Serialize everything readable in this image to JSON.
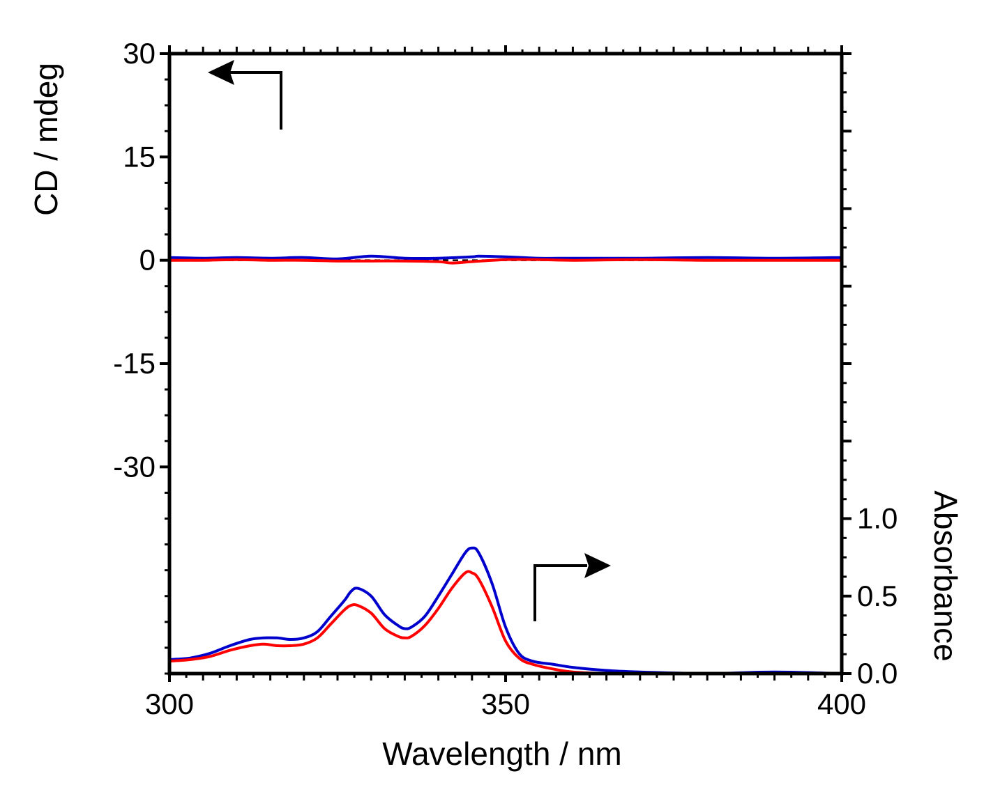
{
  "chart_data": {
    "type": "line",
    "xlabel": "Wavelength / nm",
    "ylabel_left": "CD / mdeg",
    "ylabel_right": "Absorbance",
    "xlim": [
      300,
      400
    ],
    "ylim_left": [
      -60,
      30
    ],
    "ylim_right": [
      0.0,
      4.0
    ],
    "x_ticks": [
      "300",
      "350",
      "400"
    ],
    "y_left_ticks": [
      "30",
      "15",
      "0",
      "-15",
      "-30"
    ],
    "y_right_ticks": [
      "1.0",
      "0.5",
      "0.0"
    ],
    "grid": false,
    "cd_series": [
      {
        "color": "#0000cc",
        "x": [
          300,
          305,
          310,
          315,
          320,
          325,
          330,
          335,
          340,
          345,
          346,
          350,
          355,
          360,
          370,
          380,
          390,
          400
        ],
        "y": [
          0.4,
          0.3,
          0.4,
          0.3,
          0.4,
          0.2,
          0.6,
          0.3,
          0.3,
          0.5,
          0.6,
          0.5,
          0.3,
          0.3,
          0.3,
          0.4,
          0.3,
          0.4
        ]
      },
      {
        "color": "#ff0000",
        "x": [
          300,
          305,
          310,
          315,
          320,
          325,
          330,
          335,
          340,
          342,
          345,
          350,
          355,
          360,
          370,
          380,
          390,
          400
        ],
        "y": [
          0.0,
          0.0,
          0.1,
          0.0,
          0.0,
          -0.1,
          -0.1,
          -0.1,
          -0.2,
          -0.4,
          -0.2,
          0.1,
          0.1,
          0.0,
          0.1,
          0.0,
          0.0,
          0.0
        ]
      }
    ],
    "abs_series": [
      {
        "color": "#0000cc",
        "x": [
          300,
          303,
          306,
          309,
          312,
          314,
          316,
          318,
          320,
          322,
          324,
          326,
          327,
          328,
          330,
          332,
          334,
          335,
          336,
          338,
          340,
          342,
          344,
          345,
          346,
          348,
          350,
          352,
          354,
          357,
          360,
          365,
          370,
          380,
          390,
          400
        ],
        "y": [
          0.09,
          0.1,
          0.13,
          0.18,
          0.22,
          0.23,
          0.23,
          0.22,
          0.23,
          0.27,
          0.37,
          0.47,
          0.53,
          0.55,
          0.5,
          0.38,
          0.31,
          0.29,
          0.3,
          0.37,
          0.5,
          0.64,
          0.78,
          0.81,
          0.78,
          0.58,
          0.3,
          0.13,
          0.08,
          0.06,
          0.04,
          0.02,
          0.01,
          0.0,
          0.01,
          0.0
        ]
      },
      {
        "color": "#ff0000",
        "x": [
          300,
          303,
          306,
          309,
          312,
          314,
          316,
          318,
          320,
          322,
          324,
          326,
          327,
          328,
          330,
          332,
          334,
          335,
          336,
          338,
          340,
          342,
          344,
          345,
          346,
          348,
          350,
          352,
          354,
          357,
          360,
          365,
          370,
          380,
          390,
          400
        ],
        "y": [
          0.08,
          0.09,
          0.11,
          0.15,
          0.18,
          0.19,
          0.18,
          0.18,
          0.19,
          0.23,
          0.32,
          0.41,
          0.44,
          0.44,
          0.39,
          0.29,
          0.24,
          0.23,
          0.24,
          0.31,
          0.42,
          0.55,
          0.65,
          0.65,
          0.61,
          0.43,
          0.21,
          0.1,
          0.06,
          0.03,
          0.01,
          0.0,
          0.0,
          0.0,
          0.0,
          0.0
        ]
      }
    ]
  }
}
